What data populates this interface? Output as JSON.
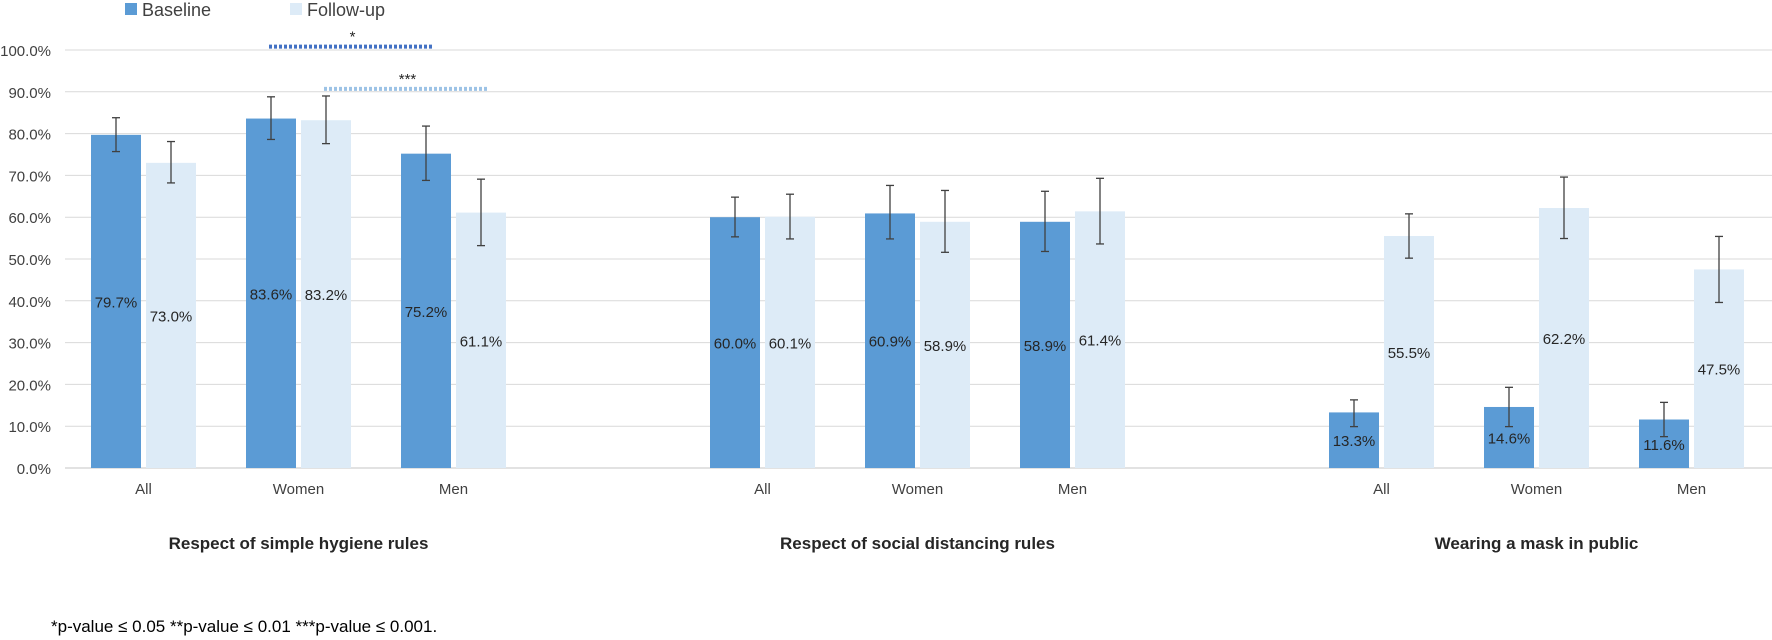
{
  "chart_data": {
    "type": "bar",
    "legend": {
      "position": "top-left",
      "items": [
        "Baseline",
        "Follow-up"
      ]
    },
    "colors": {
      "Baseline": "#5B9BD5",
      "Follow-up": "#DDEBF7",
      "errorbar": "#404040",
      "grid": "#D9D9D9"
    },
    "ylim": [
      0,
      100
    ],
    "yticks": [
      "0.0%",
      "10.0%",
      "20.0%",
      "30.0%",
      "40.0%",
      "50.0%",
      "60.0%",
      "70.0%",
      "80.0%",
      "90.0%",
      "100.0%"
    ],
    "grid": true,
    "groups": [
      {
        "title": "Respect of simple hygiene rules",
        "categories": [
          "All",
          "Women",
          "Men"
        ],
        "series": [
          {
            "name": "Baseline",
            "values": [
              79.7,
              83.6,
              75.2
            ],
            "labels": [
              "79.7%",
              "83.6%",
              "75.2%"
            ],
            "error_low": [
              75.7,
              78.6,
              68.8
            ],
            "error_high": [
              83.8,
              88.8,
              81.8
            ]
          },
          {
            "name": "Follow-up",
            "values": [
              73.0,
              83.2,
              61.1
            ],
            "labels": [
              "73.0%",
              "83.2%",
              "61.1%"
            ],
            "error_low": [
              68.2,
              77.6,
              53.2
            ],
            "error_high": [
              78.1,
              89.0,
              69.1
            ]
          }
        ],
        "significance": [
          {
            "text": "*",
            "series": "Baseline",
            "from": "Women",
            "to": "Men",
            "level": 100.8
          },
          {
            "text": "***",
            "series": "Follow-up",
            "from": "Women",
            "to": "Men",
            "level": 90.7
          }
        ]
      },
      {
        "title": "Respect of social distancing rules",
        "categories": [
          "All",
          "Women",
          "Men"
        ],
        "series": [
          {
            "name": "Baseline",
            "values": [
              60.0,
              60.9,
              58.9
            ],
            "labels": [
              "60.0%",
              "60.9%",
              "58.9%"
            ],
            "error_low": [
              55.3,
              54.8,
              51.8
            ],
            "error_high": [
              64.8,
              67.6,
              66.2
            ]
          },
          {
            "name": "Follow-up",
            "values": [
              60.1,
              58.9,
              61.4
            ],
            "labels": [
              "60.1%",
              "58.9%",
              "61.4%"
            ],
            "error_low": [
              54.8,
              51.6,
              53.6
            ],
            "error_high": [
              65.5,
              66.4,
              69.3
            ]
          }
        ],
        "significance": []
      },
      {
        "title": "Wearing a mask in public",
        "categories": [
          "All",
          "Women",
          "Men"
        ],
        "series": [
          {
            "name": "Baseline",
            "values": [
              13.3,
              14.6,
              11.6
            ],
            "labels": [
              "13.3%",
              "14.6%",
              "11.6%"
            ],
            "error_low": [
              9.9,
              9.9,
              7.5
            ],
            "error_high": [
              16.3,
              19.3,
              15.7
            ]
          },
          {
            "name": "Follow-up",
            "values": [
              55.5,
              62.2,
              47.5
            ],
            "labels": [
              "55.5%",
              "62.2%",
              "47.5%"
            ],
            "error_low": [
              50.2,
              54.9,
              39.6
            ],
            "error_high": [
              60.8,
              69.6,
              55.4
            ]
          }
        ],
        "significance": []
      }
    ],
    "footnote": "*p-value ≤ 0.05 **p-value ≤ 0.01 ***p-value ≤ 0.001."
  }
}
